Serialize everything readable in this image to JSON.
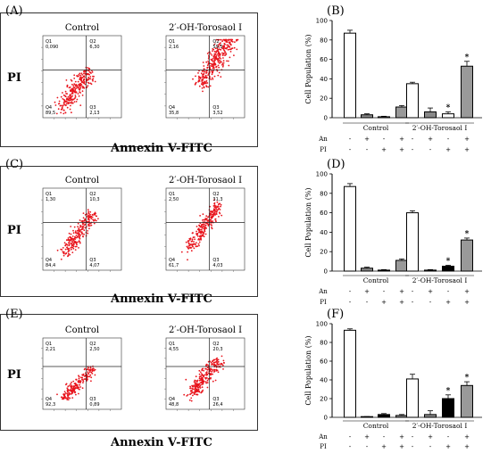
{
  "panel_letters": [
    "(A)",
    "(B)",
    "(C)",
    "(D)",
    "(E)",
    "(F)"
  ],
  "flow": {
    "left_title": "Control",
    "right_title": "2′-OH-Torosaol I",
    "ylabel": "PI",
    "xlabel": "Annexin V-FITC",
    "quadrant_names": [
      "Q1",
      "Q2",
      "Q3",
      "Q4"
    ],
    "rows": [
      {
        "control": {
          "Q1": "0,090",
          "Q2": "6,30",
          "Q3": "2,13",
          "Q4": "89,5"
        },
        "treated": {
          "Q1": "2,16",
          "Q2": "59,5",
          "Q3": "3,52",
          "Q4": "35,8"
        }
      },
      {
        "control": {
          "Q1": "1,30",
          "Q2": "10,3",
          "Q3": "4,07",
          "Q4": "84,4"
        },
        "treated": {
          "Q1": "2,50",
          "Q2": "31,3",
          "Q3": "4,03",
          "Q4": "61,7"
        }
      },
      {
        "control": {
          "Q1": "2,21",
          "Q2": "2,50",
          "Q3": "0,89",
          "Q4": "92,3"
        },
        "treated": {
          "Q1": "4,55",
          "Q2": "20,3",
          "Q3": "26,4",
          "Q4": "48,8"
        }
      }
    ]
  },
  "chart_data": [
    {
      "type": "bar",
      "panel": "(B)",
      "ylabel": "Cell Population (%)",
      "ylim": [
        0,
        100
      ],
      "yticks": [
        0,
        20,
        40,
        60,
        80,
        100
      ],
      "groups": [
        "Control",
        "2′-OH-Torosaol I"
      ],
      "row_labels": [
        "An",
        "PI"
      ],
      "annexin_signs": [
        "-",
        "+",
        "-",
        "+"
      ],
      "pi_signs": [
        "-",
        "-",
        "+",
        "+"
      ],
      "fills": [
        "#ffffff",
        "#888888",
        "#ffffff",
        "#999999"
      ],
      "series": [
        {
          "values": [
            87,
            3,
            1,
            11
          ],
          "errors": [
            3,
            1,
            0.5,
            1.5
          ],
          "sig": [
            false,
            false,
            false,
            false
          ]
        },
        {
          "values": [
            35,
            6,
            4,
            53
          ],
          "errors": [
            1.5,
            4,
            2,
            5
          ],
          "sig": [
            false,
            false,
            true,
            true
          ]
        }
      ]
    },
    {
      "type": "bar",
      "panel": "(D)",
      "ylabel": "Cell Population (%)",
      "ylim": [
        0,
        100
      ],
      "yticks": [
        0,
        20,
        40,
        60,
        80,
        100
      ],
      "groups": [
        "Control",
        "2′-OH-Torosaol I"
      ],
      "row_labels": [
        "An",
        "PI"
      ],
      "annexin_signs": [
        "-",
        "+",
        "-",
        "+"
      ],
      "pi_signs": [
        "-",
        "-",
        "+",
        "+"
      ],
      "fills": [
        "#ffffff",
        "#888888",
        "#000000",
        "#999999"
      ],
      "series": [
        {
          "values": [
            87,
            3,
            1,
            11
          ],
          "errors": [
            3,
            1,
            0.5,
            1.5
          ],
          "sig": [
            false,
            false,
            false,
            false
          ]
        },
        {
          "values": [
            60,
            1,
            5,
            32
          ],
          "errors": [
            2,
            0.5,
            1,
            2
          ],
          "sig": [
            false,
            false,
            true,
            true
          ]
        }
      ]
    },
    {
      "type": "bar",
      "panel": "(F)",
      "ylabel": "Cell Population (%)",
      "ylim": [
        0,
        100
      ],
      "yticks": [
        0,
        20,
        40,
        60,
        80,
        100
      ],
      "groups": [
        "Control",
        "2′-OH-Torosaol I"
      ],
      "row_labels": [
        "An",
        "PI"
      ],
      "annexin_signs": [
        "-",
        "+",
        "-",
        "+"
      ],
      "pi_signs": [
        "-",
        "-",
        "+",
        "+"
      ],
      "fills": [
        "#ffffff",
        "#888888",
        "#000000",
        "#999999"
      ],
      "series": [
        {
          "values": [
            93,
            0.5,
            3,
            2
          ],
          "errors": [
            1.5,
            0.3,
            1,
            1
          ],
          "sig": [
            false,
            false,
            false,
            false
          ]
        },
        {
          "values": [
            41,
            3,
            20,
            34
          ],
          "errors": [
            5,
            4,
            4,
            4
          ],
          "sig": [
            false,
            false,
            true,
            true
          ]
        }
      ]
    }
  ]
}
